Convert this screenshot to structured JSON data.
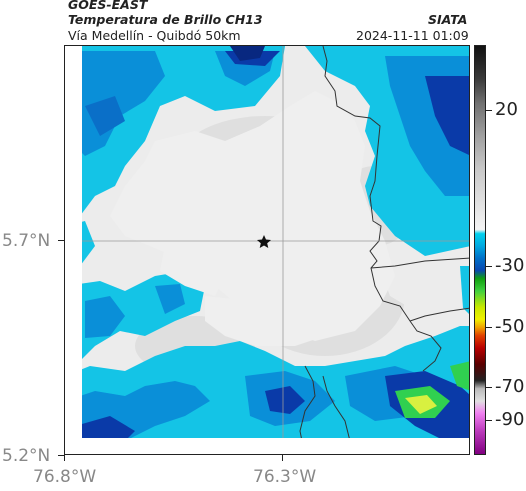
{
  "header": {
    "satellite": "GOES-EAST",
    "product": "Temperatura de Brillo CH13",
    "region": "Vía Medellín - Quibdó 50km",
    "organization": "SIATA",
    "timestamp": "2024-11-11 01:09"
  },
  "axes": {
    "lat_labels": [
      "5.7°N",
      "5.2°N"
    ],
    "lon_labels": [
      "76.8°W",
      "76.3°W"
    ]
  },
  "colorbar": {
    "labels": [
      "20",
      "-30",
      "-50",
      "-70",
      "-90"
    ],
    "colors": {
      "warm_black": "#111111",
      "grey": "#9a9a9a",
      "white": "#f4f4f4",
      "cyan": "#00c8e6",
      "blue": "#0050b8",
      "green": "#18b018",
      "yellow": "#f0f000",
      "red": "#d81000",
      "dark_red": "#5a0000",
      "magenta": "#c040c0"
    }
  },
  "map": {
    "marker_icon": "star-icon",
    "colors": {
      "cloud_white": "#efefef",
      "cloud_grey": "#d8d8d8",
      "cyan": "#1ec8e8",
      "mid_blue": "#0a8fd8",
      "deep_blue": "#0a3aa8",
      "green": "#30d050",
      "border": "#333333",
      "grid": "#9a9a9a"
    }
  }
}
